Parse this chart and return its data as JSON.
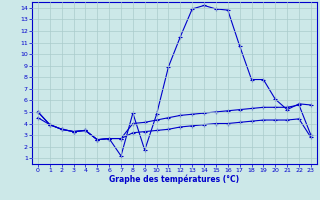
{
  "xlabel": "Graphe des températures (°C)",
  "bg_color": "#cce8e8",
  "grid_color": "#aacccc",
  "line_color": "#0000cc",
  "xlim": [
    -0.5,
    23.5
  ],
  "ylim": [
    0.5,
    14.5
  ],
  "xticks": [
    0,
    1,
    2,
    3,
    4,
    5,
    6,
    7,
    8,
    9,
    10,
    11,
    12,
    13,
    14,
    15,
    16,
    17,
    18,
    19,
    20,
    21,
    22,
    23
  ],
  "yticks": [
    1,
    2,
    3,
    4,
    5,
    6,
    7,
    8,
    9,
    10,
    11,
    12,
    13,
    14
  ],
  "line1_x": [
    0,
    1,
    2,
    3,
    4,
    5,
    6,
    7,
    8,
    9,
    10,
    11,
    12,
    13,
    14,
    15,
    16,
    17,
    18,
    19,
    20,
    21,
    22,
    23
  ],
  "line1_y": [
    5.0,
    3.9,
    3.5,
    3.3,
    3.4,
    2.6,
    2.7,
    1.2,
    4.9,
    1.7,
    4.8,
    8.9,
    11.5,
    13.9,
    14.2,
    13.9,
    13.8,
    10.7,
    7.8,
    7.8,
    6.1,
    5.2,
    5.7,
    5.6
  ],
  "line2_x": [
    0,
    1,
    2,
    3,
    4,
    5,
    6,
    7,
    8,
    9,
    10,
    11,
    12,
    13,
    14,
    15,
    16,
    17,
    18,
    19,
    20,
    21,
    22,
    23
  ],
  "line2_y": [
    5.0,
    3.9,
    3.5,
    3.3,
    3.4,
    2.6,
    2.7,
    2.7,
    4.0,
    4.1,
    4.3,
    4.5,
    4.7,
    4.8,
    4.9,
    5.0,
    5.1,
    5.2,
    5.3,
    5.4,
    5.4,
    5.4,
    5.6,
    3.0
  ],
  "line3_x": [
    0,
    1,
    2,
    3,
    4,
    5,
    6,
    7,
    8,
    9,
    10,
    11,
    12,
    13,
    14,
    15,
    16,
    17,
    18,
    19,
    20,
    21,
    22,
    23
  ],
  "line3_y": [
    4.5,
    3.9,
    3.5,
    3.3,
    3.4,
    2.6,
    2.7,
    2.7,
    3.2,
    3.3,
    3.4,
    3.5,
    3.7,
    3.8,
    3.9,
    4.0,
    4.0,
    4.1,
    4.2,
    4.3,
    4.3,
    4.3,
    4.4,
    2.8
  ]
}
